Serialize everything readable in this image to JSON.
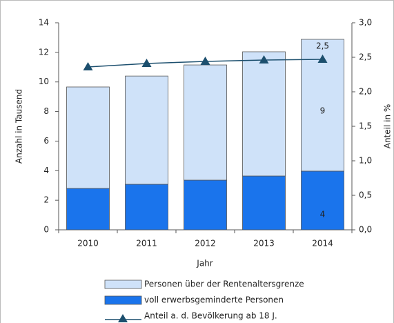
{
  "chart_data": {
    "type": "bar",
    "stacked": true,
    "x_label": "Jahr",
    "y_label": "Anzahl in Tausend",
    "y2_label": "Anteil in %",
    "categories": [
      "2010",
      "2011",
      "2012",
      "2013",
      "2014"
    ],
    "series": [
      {
        "name": "voll erwerbsgeminderte Personen",
        "color": "#1a74ec",
        "type": "bar",
        "values": [
          2.8,
          3.08,
          3.36,
          3.64,
          3.97
        ],
        "value_labels": [
          null,
          null,
          null,
          null,
          "4"
        ]
      },
      {
        "name": "Personen über der Rentenaltersgrenze",
        "color": "#cfe2f9",
        "type": "bar",
        "values": [
          6.86,
          7.32,
          7.79,
          8.4,
          8.91
        ],
        "value_labels": [
          null,
          null,
          null,
          null,
          "9"
        ]
      },
      {
        "name": "Anteil a. d. Bevölkerung ab 18 J.",
        "color": "#1c4f6e",
        "type": "line",
        "axis": "y2",
        "values": [
          2.36,
          2.41,
          2.44,
          2.46,
          2.47
        ],
        "value_labels": [
          null,
          null,
          null,
          null,
          "2,5"
        ]
      }
    ],
    "ylim": [
      0,
      14
    ],
    "yticks": [
      0,
      2,
      4,
      6,
      8,
      10,
      12,
      14
    ],
    "y2lim": [
      0,
      3
    ],
    "y2ticks": [
      {
        "value": 0,
        "label": "0,0"
      },
      {
        "value": 0.5,
        "label": "0,5"
      },
      {
        "value": 1,
        "label": "1,0"
      },
      {
        "value": 1.5,
        "label": "1,5"
      },
      {
        "value": 2,
        "label": "2,0"
      },
      {
        "value": 2.5,
        "label": "2,5"
      },
      {
        "value": 3,
        "label": "3,0"
      }
    ],
    "legend": "bottom"
  }
}
